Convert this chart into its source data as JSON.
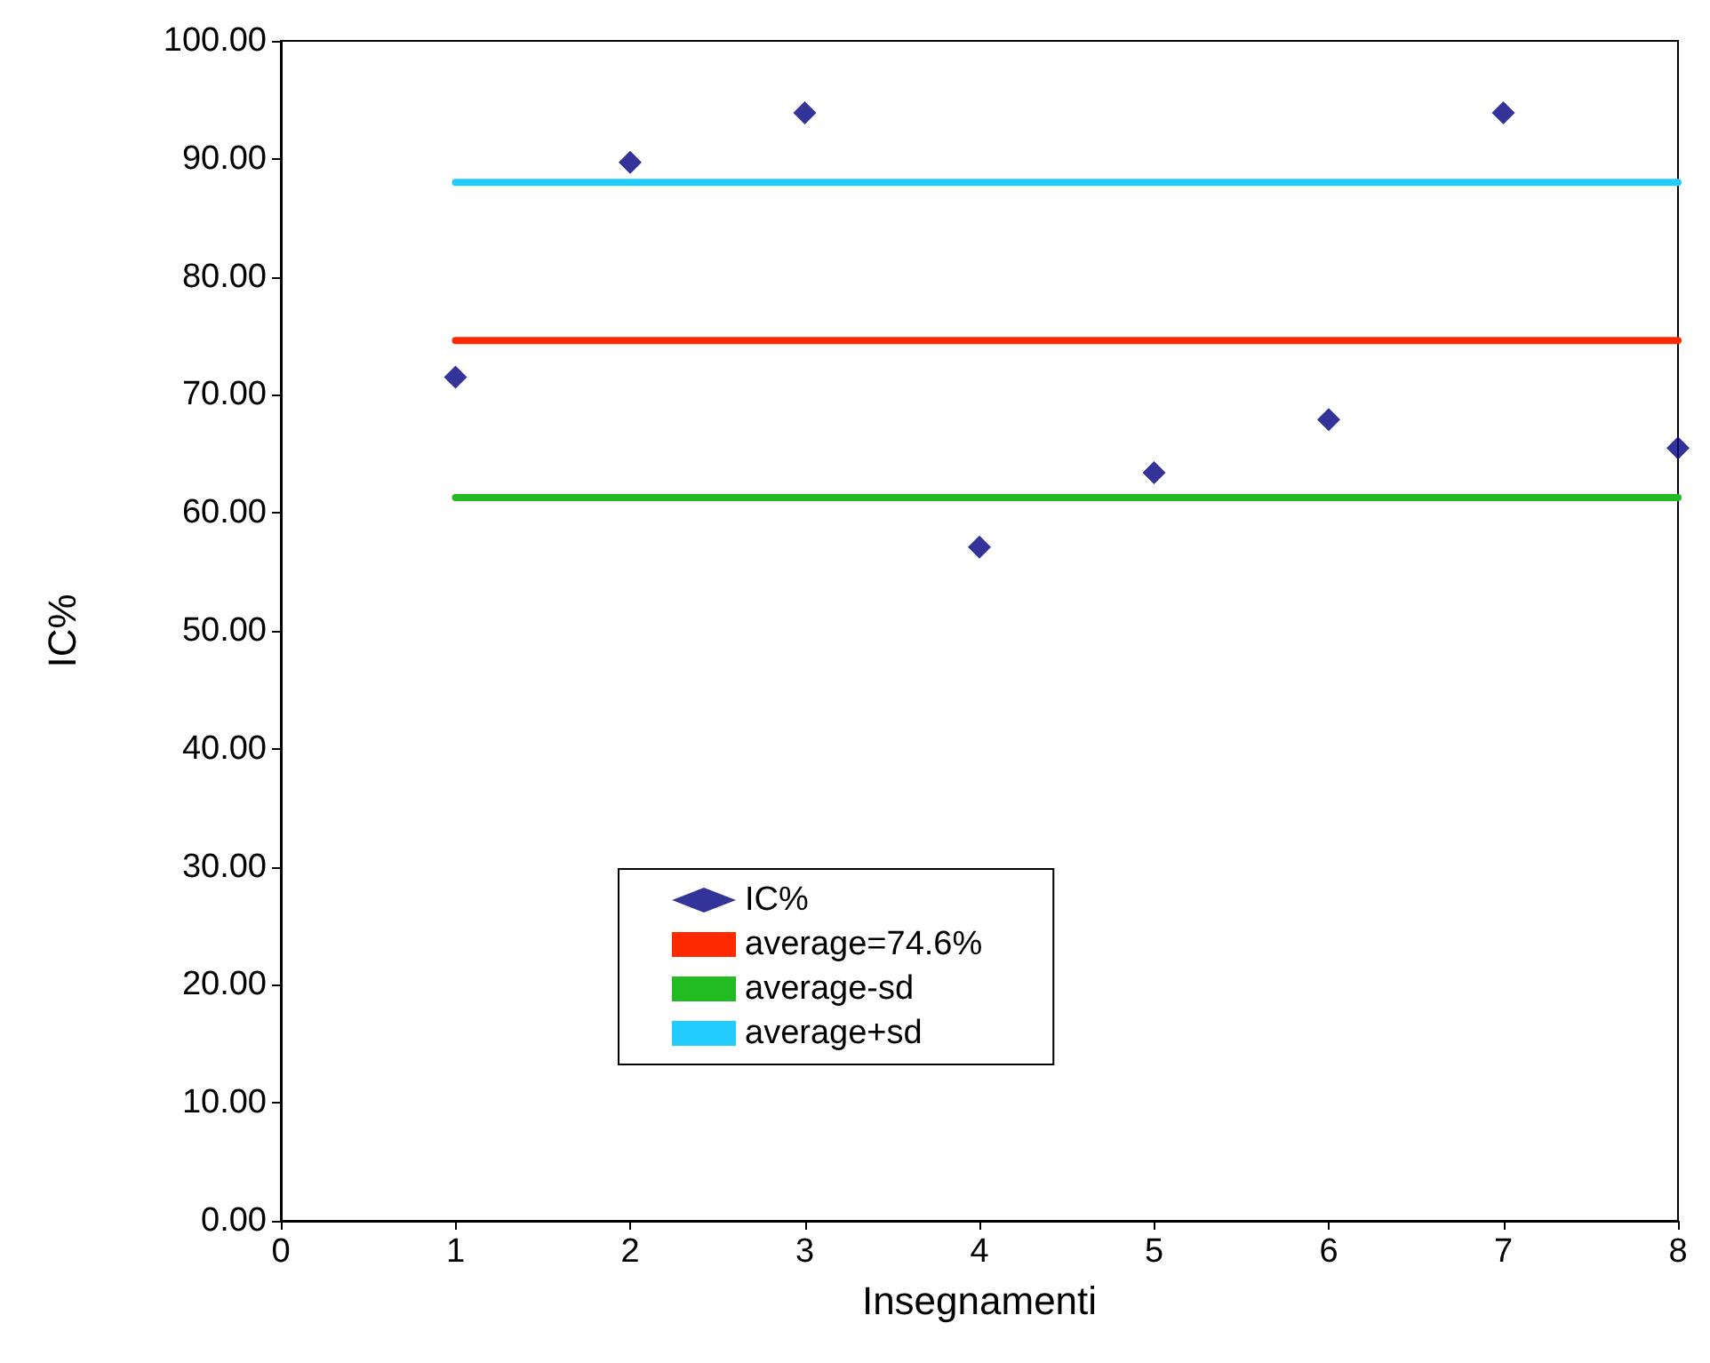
{
  "chart_data": {
    "type": "scatter",
    "xlabel": "Insegnamenti",
    "ylabel": "IC%",
    "marker": "diamond",
    "legend": "bottom",
    "grid": false,
    "xlim": [
      0,
      8
    ],
    "xticks": [
      0,
      1,
      2,
      3,
      4,
      5,
      6,
      7,
      8
    ],
    "ylim": [
      0,
      100
    ],
    "yticks": [
      {
        "value": 0,
        "label": "0.00"
      },
      {
        "value": 10,
        "label": "10.00"
      },
      {
        "value": 20,
        "label": "20.00"
      },
      {
        "value": 30,
        "label": "30.00"
      },
      {
        "value": 40,
        "label": "40.00"
      },
      {
        "value": 50,
        "label": "50.00"
      },
      {
        "value": 60,
        "label": "60.00"
      },
      {
        "value": 70,
        "label": "70.00"
      },
      {
        "value": 80,
        "label": "80.00"
      },
      {
        "value": 90,
        "label": "90.00"
      },
      {
        "value": 100,
        "label": "100.00"
      }
    ],
    "series": [
      {
        "name": "IC%",
        "type": "scatter",
        "color": "#000080",
        "x": [
          1,
          2,
          3,
          4,
          5,
          6,
          7,
          8
        ],
        "values": [
          71.5,
          89.7,
          93.9,
          57.1,
          63.4,
          67.9,
          93.9,
          65.5
        ]
      },
      {
        "name": "average=74.6%",
        "type": "line",
        "color": "#ff2a00",
        "marker": "none",
        "x": [
          1,
          8
        ],
        "values": [
          74.6,
          74.6
        ]
      },
      {
        "name": "average-sd",
        "type": "line",
        "color": "#22bb22",
        "marker": "none",
        "x": [
          1,
          8
        ],
        "values": [
          61.3,
          61.3
        ]
      },
      {
        "name": "average+sd",
        "type": "line",
        "color": "#22ccff",
        "marker": "none",
        "x": [
          1,
          8
        ],
        "values": [
          88.0,
          88.0
        ]
      }
    ]
  }
}
